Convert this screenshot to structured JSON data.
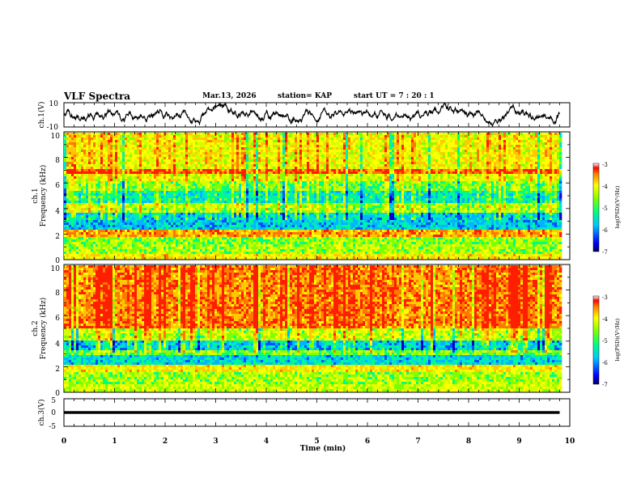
{
  "header": {
    "title": "VLF Spectra",
    "date": "Mar.13, 2026",
    "station": "station= KAP",
    "start": "start  UT  =   7 : 20 : 1"
  },
  "chart_data": [
    {
      "id": "ch1-waveform",
      "type": "line",
      "ylabel": "ch.1(V)",
      "ylim": [
        -10,
        10
      ],
      "yticks": [
        "10",
        "-10"
      ],
      "xlim": [
        0,
        10
      ]
    },
    {
      "id": "ch1-spectrogram",
      "type": "heatmap",
      "ylabel": "ch.1\nFrequency  (kHz)",
      "ylim": [
        0,
        10
      ],
      "yticks": [
        "10",
        "8",
        "6",
        "4",
        "2",
        "0"
      ],
      "xlim": [
        0,
        9.8
      ],
      "colorbar": {
        "label": "log(PSD)(V²/Hz)",
        "range": [
          -7,
          -3
        ],
        "ticks": [
          "-3",
          "-4",
          "-5",
          "-6",
          "-7"
        ]
      }
    },
    {
      "id": "ch2-spectrogram",
      "type": "heatmap",
      "ylabel": "ch.2\nFrequency  (kHz)",
      "ylim": [
        0,
        10
      ],
      "yticks": [
        "10",
        "8",
        "6",
        "4",
        "2",
        "0"
      ],
      "xlim": [
        0,
        9.8
      ],
      "colorbar": {
        "label": "log(PSD)(V²/Hz)",
        "range": [
          -7,
          -3
        ],
        "ticks": [
          "-3",
          "-4",
          "-5",
          "-6",
          "-7"
        ]
      }
    },
    {
      "id": "ch3-waveform",
      "type": "line",
      "ylabel": "ch.3(V)",
      "ylim": [
        -5,
        5
      ],
      "yticks": [
        "5",
        "0",
        "-5"
      ],
      "xlim": [
        0,
        10
      ]
    }
  ],
  "xaxis": {
    "label": "Time  (min)",
    "ticks": [
      "0",
      "1",
      "2",
      "3",
      "4",
      "5",
      "6",
      "7",
      "8",
      "9",
      "10"
    ]
  }
}
